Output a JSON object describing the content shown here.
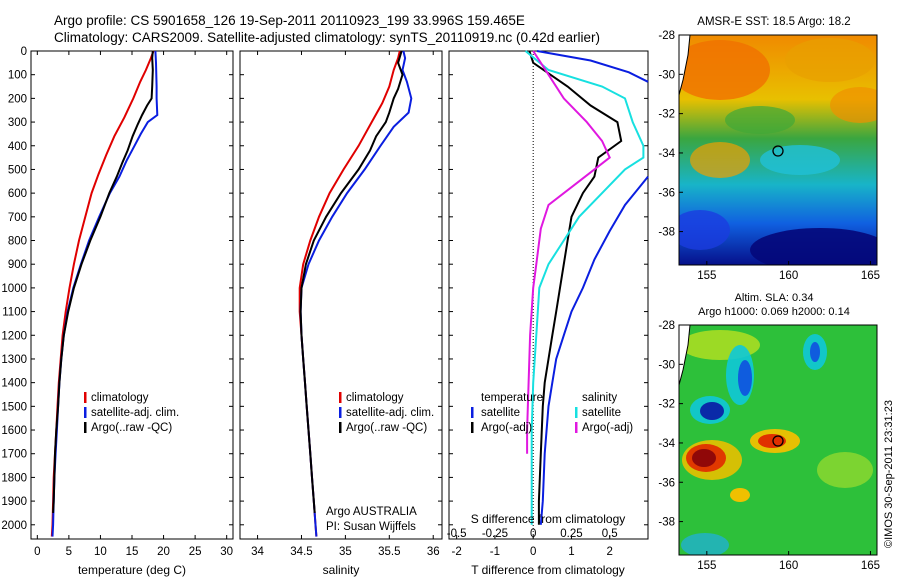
{
  "header": {
    "line1": "Argo profile: CS 5901658_126 19-Sep-2011 20110923_199 33.996S 159.465E",
    "line2": "Climatology: CARS2009. Satellite-adjusted climatology: synTS_20110919.nc (0.42d earlier)"
  },
  "colors": {
    "climatology": "#e00000",
    "satellite": "#0a1ee0",
    "argo": "#000000",
    "s_satellite": "#17e0e0",
    "s_argo": "#e018e0"
  },
  "chart_data": [
    {
      "type": "line",
      "title": "",
      "xlabel": "temperature (deg C)",
      "ylabel": "",
      "xlim": [
        -1,
        31
      ],
      "ylim": [
        2060,
        0
      ],
      "xticks": [
        0,
        5,
        10,
        15,
        20,
        25,
        30
      ],
      "yticks": [
        0,
        100,
        200,
        300,
        400,
        500,
        600,
        700,
        800,
        900,
        1000,
        1100,
        1200,
        1300,
        1400,
        1500,
        1600,
        1700,
        1800,
        1900,
        2000
      ],
      "legend": [
        "climatology",
        "satellite-adj. clim.",
        "Argo(..raw -QC)"
      ],
      "series": [
        {
          "name": "climatology",
          "color": "climatology",
          "points": [
            [
              18.4,
              0
            ],
            [
              18.0,
              30
            ],
            [
              17.2,
              80
            ],
            [
              16.3,
              130
            ],
            [
              15.2,
              200
            ],
            [
              13.8,
              280
            ],
            [
              12.2,
              360
            ],
            [
              10.9,
              440
            ],
            [
              9.7,
              520
            ],
            [
              8.6,
              600
            ],
            [
              7.6,
              700
            ],
            [
              6.6,
              800
            ],
            [
              5.8,
              900
            ],
            [
              5.1,
              1000
            ],
            [
              4.5,
              1100
            ],
            [
              4.0,
              1200
            ],
            [
              3.7,
              1300
            ],
            [
              3.4,
              1400
            ],
            [
              3.2,
              1500
            ],
            [
              3.0,
              1600
            ],
            [
              2.8,
              1700
            ],
            [
              2.6,
              1800
            ],
            [
              2.5,
              1900
            ],
            [
              2.4,
              2000
            ],
            [
              2.3,
              2050
            ]
          ]
        },
        {
          "name": "satellite-adj. clim.",
          "color": "satellite",
          "points": [
            [
              18.7,
              0
            ],
            [
              18.8,
              50
            ],
            [
              18.9,
              150
            ],
            [
              18.9,
              200
            ],
            [
              19.0,
              270
            ],
            [
              17.5,
              300
            ],
            [
              16.4,
              350
            ],
            [
              15.4,
              400
            ],
            [
              14.2,
              460
            ],
            [
              13.0,
              530
            ],
            [
              11.5,
              600
            ],
            [
              9.8,
              700
            ],
            [
              8.2,
              800
            ],
            [
              6.9,
              900
            ],
            [
              5.7,
              1000
            ],
            [
              4.8,
              1100
            ],
            [
              4.2,
              1200
            ],
            [
              3.8,
              1300
            ],
            [
              3.5,
              1400
            ],
            [
              3.3,
              1500
            ],
            [
              3.1,
              1600
            ],
            [
              2.9,
              1700
            ],
            [
              2.7,
              1800
            ],
            [
              2.6,
              1900
            ],
            [
              2.5,
              2000
            ],
            [
              2.4,
              2050
            ]
          ]
        },
        {
          "name": "Argo(..raw -QC)",
          "color": "argo",
          "points": [
            [
              18.3,
              0
            ],
            [
              18.2,
              30
            ],
            [
              18.3,
              80
            ],
            [
              18.2,
              150
            ],
            [
              18.1,
              200
            ],
            [
              17.4,
              230
            ],
            [
              16.6,
              270
            ],
            [
              15.9,
              310
            ],
            [
              15.1,
              360
            ],
            [
              14.3,
              420
            ],
            [
              13.5,
              470
            ],
            [
              12.6,
              530
            ],
            [
              11.4,
              600
            ],
            [
              10.0,
              700
            ],
            [
              8.4,
              800
            ],
            [
              7.0,
              900
            ],
            [
              5.8,
              1000
            ],
            [
              4.9,
              1100
            ],
            [
              4.2,
              1200
            ],
            [
              3.8,
              1300
            ],
            [
              3.5,
              1400
            ],
            [
              3.3,
              1500
            ],
            [
              3.0,
              1600
            ],
            [
              2.8,
              1700
            ],
            [
              2.7,
              1800
            ],
            [
              2.6,
              1900
            ],
            [
              2.5,
              1950
            ]
          ]
        }
      ]
    },
    {
      "type": "line",
      "title": "",
      "xlabel": "salinity",
      "ylabel": "",
      "xlim": [
        33.8,
        36.1
      ],
      "ylim": [
        2060,
        0
      ],
      "xticks": [
        34,
        34.5,
        35,
        35.5,
        36
      ],
      "xticklabels": [
        "34",
        "34.5",
        "35",
        "35.5",
        "36"
      ],
      "legend": [
        "climatology",
        "satellite-adj. clim.",
        "Argo(..raw -QC)"
      ],
      "annotations": [
        "Argo AUSTRALIA",
        "PI: Susan Wijffels"
      ],
      "series": [
        {
          "name": "climatology",
          "color": "climatology",
          "points": [
            [
              35.62,
              0
            ],
            [
              35.6,
              30
            ],
            [
              35.55,
              80
            ],
            [
              35.5,
              150
            ],
            [
              35.42,
              220
            ],
            [
              35.3,
              300
            ],
            [
              35.15,
              400
            ],
            [
              34.98,
              500
            ],
            [
              34.82,
              600
            ],
            [
              34.7,
              700
            ],
            [
              34.6,
              800
            ],
            [
              34.52,
              900
            ],
            [
              34.48,
              1000
            ],
            [
              34.48,
              1100
            ],
            [
              34.5,
              1200
            ],
            [
              34.52,
              1300
            ],
            [
              34.54,
              1400
            ],
            [
              34.56,
              1500
            ],
            [
              34.58,
              1600
            ],
            [
              34.6,
              1700
            ],
            [
              34.62,
              1800
            ],
            [
              34.64,
              1900
            ],
            [
              34.66,
              2000
            ],
            [
              34.67,
              2050
            ]
          ]
        },
        {
          "name": "satellite-adj. clim.",
          "color": "satellite",
          "points": [
            [
              35.66,
              0
            ],
            [
              35.68,
              30
            ],
            [
              35.65,
              80
            ],
            [
              35.7,
              130
            ],
            [
              35.75,
              200
            ],
            [
              35.72,
              260
            ],
            [
              35.55,
              320
            ],
            [
              35.4,
              400
            ],
            [
              35.22,
              500
            ],
            [
              35.02,
              600
            ],
            [
              34.85,
              700
            ],
            [
              34.7,
              800
            ],
            [
              34.58,
              900
            ],
            [
              34.5,
              1000
            ],
            [
              34.49,
              1100
            ],
            [
              34.5,
              1200
            ],
            [
              34.52,
              1300
            ],
            [
              34.54,
              1400
            ],
            [
              34.56,
              1500
            ],
            [
              34.58,
              1600
            ],
            [
              34.6,
              1700
            ],
            [
              34.62,
              1800
            ],
            [
              34.64,
              1900
            ],
            [
              34.66,
              2000
            ],
            [
              34.67,
              2050
            ]
          ]
        },
        {
          "name": "Argo(..raw -QC)",
          "color": "argo",
          "points": [
            [
              35.64,
              0
            ],
            [
              35.6,
              50
            ],
            [
              35.65,
              100
            ],
            [
              35.6,
              160
            ],
            [
              35.55,
              200
            ],
            [
              35.5,
              260
            ],
            [
              35.46,
              300
            ],
            [
              35.35,
              360
            ],
            [
              35.28,
              420
            ],
            [
              35.15,
              500
            ],
            [
              34.95,
              600
            ],
            [
              34.78,
              700
            ],
            [
              34.64,
              800
            ],
            [
              34.55,
              900
            ],
            [
              34.5,
              1000
            ],
            [
              34.49,
              1100
            ],
            [
              34.5,
              1200
            ],
            [
              34.52,
              1300
            ],
            [
              34.54,
              1400
            ],
            [
              34.56,
              1500
            ],
            [
              34.58,
              1600
            ],
            [
              34.6,
              1700
            ],
            [
              34.62,
              1800
            ],
            [
              34.64,
              1900
            ],
            [
              34.65,
              1950
            ]
          ]
        }
      ]
    },
    {
      "type": "line",
      "title": "",
      "xlabel": "T difference from climatology",
      "xlabel2": "S difference from climatology",
      "xlim": [
        -2.2,
        3
      ],
      "xticks": [
        -2,
        -1,
        0,
        1,
        2
      ],
      "xticks_s": [
        -0.5,
        -0.25,
        0,
        0.25,
        0.5
      ],
      "xticklabels_s": [
        "-0.5",
        "-0.25",
        "0",
        "0.25",
        "0.5"
      ],
      "ylim": [
        2060,
        0
      ],
      "legend_headers": [
        "temperature",
        "salinity"
      ],
      "legend": [
        "satellite",
        "Argo(-adj)",
        "satellite",
        "Argo(-adj)"
      ],
      "series": [
        {
          "name": "T satellite",
          "color": "satellite",
          "points": [
            [
              0.1,
              0
            ],
            [
              1.5,
              40
            ],
            [
              2.5,
              90
            ],
            [
              3.0,
              130
            ]
          ],
          "segment2": [
            [
              3.0,
              530
            ],
            [
              2.4,
              650
            ],
            [
              2.0,
              760
            ],
            [
              1.6,
              880
            ],
            [
              1.3,
              1000
            ],
            [
              1.0,
              1100
            ],
            [
              0.8,
              1200
            ],
            [
              0.6,
              1300
            ],
            [
              0.5,
              1400
            ],
            [
              0.4,
              1500
            ],
            [
              0.3,
              1700
            ],
            [
              0.25,
              1900
            ],
            [
              0.2,
              2000
            ]
          ]
        },
        {
          "name": "T Argo(-adj)",
          "color": "argo",
          "points": [
            [
              -0.1,
              0
            ],
            [
              0.0,
              50
            ],
            [
              0.9,
              150
            ],
            [
              1.5,
              230
            ],
            [
              2.2,
              300
            ],
            [
              2.3,
              380
            ],
            [
              1.7,
              450
            ],
            [
              1.6,
              530
            ],
            [
              1.3,
              600
            ],
            [
              1.0,
              700
            ],
            [
              0.9,
              800
            ],
            [
              0.8,
              900
            ],
            [
              0.7,
              1000
            ],
            [
              0.6,
              1100
            ],
            [
              0.5,
              1200
            ],
            [
              0.4,
              1300
            ],
            [
              0.3,
              1400
            ],
            [
              0.25,
              1500
            ],
            [
              0.2,
              1700
            ],
            [
              0.15,
              1900
            ],
            [
              0.15,
              2000
            ]
          ]
        },
        {
          "name": "S satellite",
          "color": "s_satellite",
          "points": [
            [
              -0.05,
              0
            ],
            [
              0.1,
              80
            ],
            [
              0.45,
              150
            ],
            [
              0.6,
              200
            ],
            [
              0.65,
              300
            ],
            [
              0.72,
              400
            ],
            [
              0.72,
              450
            ],
            [
              0.6,
              500
            ],
            [
              0.45,
              600
            ],
            [
              0.3,
              700
            ],
            [
              0.2,
              800
            ],
            [
              0.1,
              900
            ],
            [
              0.04,
              1000
            ],
            [
              0.02,
              1200
            ],
            [
              0.0,
              1400
            ],
            [
              -0.01,
              1600
            ],
            [
              -0.01,
              1800
            ],
            [
              -0.01,
              2000
            ]
          ]
        },
        {
          "name": "S Argo(-adj)",
          "color": "s_argo",
          "points": [
            [
              0.0,
              0
            ],
            [
              0.1,
              100
            ],
            [
              0.2,
              200
            ],
            [
              0.35,
              300
            ],
            [
              0.45,
              380
            ],
            [
              0.5,
              450
            ],
            [
              0.3,
              550
            ],
            [
              0.1,
              650
            ],
            [
              0.05,
              750
            ],
            [
              0.02,
              900
            ],
            [
              0.0,
              1000
            ],
            [
              -0.02,
              1200
            ],
            [
              -0.03,
              1400
            ],
            [
              -0.04,
              1600
            ],
            [
              -0.04,
              1700
            ]
          ]
        }
      ]
    }
  ],
  "maps": {
    "top": {
      "title": "AMSR-E SST: 18.5  Argo: 18.2",
      "xticks": [
        "155",
        "160",
        "165"
      ],
      "yticks": [
        "-28",
        "-30",
        "-32",
        "-34",
        "-36",
        "-38"
      ]
    },
    "bottom": {
      "title1": "Altim. SLA: 0.34",
      "title2": "Argo h1000: 0.069  h2000: 0.14",
      "xticks": [
        "155",
        "160",
        "165"
      ],
      "yticks": [
        "-28",
        "-30",
        "-32",
        "-34",
        "-36",
        "-38"
      ]
    }
  },
  "footer": {
    "stamp": "©IMOS 30-Sep-2011 23:31:23"
  }
}
